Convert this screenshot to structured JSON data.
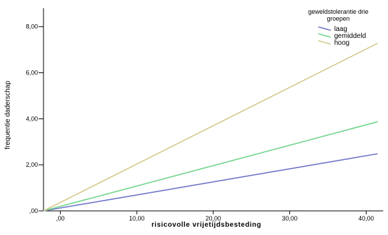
{
  "chart_data": {
    "type": "line",
    "xlabel": "risicovolle vrijetijdsbesteding",
    "ylabel": "frequentie daderschap",
    "xlim": [
      -2.2,
      41.5
    ],
    "ylim": [
      0,
      8.8
    ],
    "x_ticks": [
      0,
      10,
      20,
      30,
      40
    ],
    "x_tick_labels": [
      ",00",
      "10,00",
      "20,00",
      "30,00",
      "40,00"
    ],
    "y_ticks": [
      0,
      2,
      4,
      6,
      8
    ],
    "y_tick_labels": [
      ",00",
      "2,00",
      "4,00",
      "6,00",
      "8,00"
    ],
    "grid": false,
    "legend_title": "geweldstolerantie drie groepen",
    "legend_position": "top-right",
    "series": [
      {
        "name": "laag",
        "color": "#6b74c8",
        "x": [
          -2.2,
          41.5
        ],
        "y": [
          0.0,
          2.48
        ]
      },
      {
        "name": "gemiddeld",
        "color": "#6fd48a",
        "x": [
          -2.2,
          41.5
        ],
        "y": [
          0.0,
          3.87
        ]
      },
      {
        "name": "hoog",
        "color": "#d4c88a",
        "x": [
          -2.2,
          41.5
        ],
        "y": [
          0.0,
          7.28
        ]
      }
    ]
  }
}
